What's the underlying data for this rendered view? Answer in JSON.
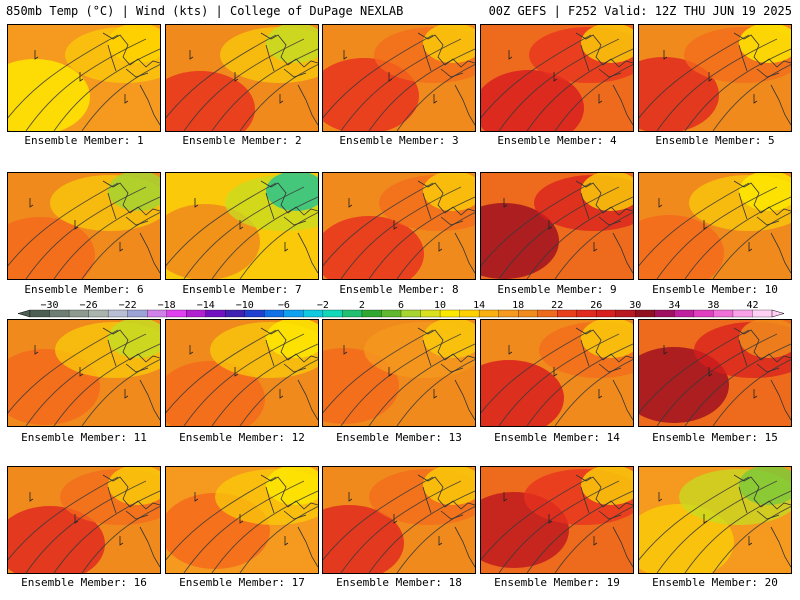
{
  "header": {
    "left": "850mb Temp (°C) | Wind (kts) | College of DuPage NEXLAB",
    "right": "00Z GEFS | F252 Valid: 12Z THU JUN 19 2025"
  },
  "members": [
    {
      "label": "Ensemble Member: 1",
      "base": "#f59a1e",
      "hot": "#fde800",
      "warm": "#f9c90a",
      "hot2": "#ffd400"
    },
    {
      "label": "Ensemble Member: 2",
      "base": "#f08a1c",
      "hot": "#e8321f",
      "warm": "#f9c90a",
      "hot2": "#c7dc22"
    },
    {
      "label": "Ensemble Member: 3",
      "base": "#f08a1c",
      "hot": "#e8321f",
      "warm": "#f46a1c",
      "hot2": "#f9c90a"
    },
    {
      "label": "Ensemble Member: 4",
      "base": "#ee6a1c",
      "hot": "#d81f1f",
      "warm": "#e8321f",
      "hot2": "#f9c90a"
    },
    {
      "label": "Ensemble Member: 5",
      "base": "#f08a1c",
      "hot": "#e02a1f",
      "warm": "#f46a1c",
      "hot2": "#fde800"
    },
    {
      "label": "Ensemble Member: 6",
      "base": "#f08a1c",
      "hot": "#f46a1c",
      "warm": "#f9c90a",
      "hot2": "#a6d430"
    },
    {
      "label": "Ensemble Member: 7",
      "base": "#f9c90a",
      "hot": "#f08a1c",
      "warm": "#c7dc22",
      "hot2": "#2bc48c"
    },
    {
      "label": "Ensemble Member: 8",
      "base": "#f08a1c",
      "hot": "#e8321f",
      "warm": "#f46a1c",
      "hot2": "#f9c90a"
    },
    {
      "label": "Ensemble Member: 9",
      "base": "#ee6a1c",
      "hot": "#a01020",
      "warm": "#d81f1f",
      "hot2": "#f9c90a"
    },
    {
      "label": "Ensemble Member: 10",
      "base": "#f08a1c",
      "hot": "#f46a1c",
      "warm": "#f9c90a",
      "hot2": "#fde800"
    },
    {
      "label": "Ensemble Member: 11",
      "base": "#f08a1c",
      "hot": "#f46a1c",
      "warm": "#f9c90a",
      "hot2": "#c7dc22"
    },
    {
      "label": "Ensemble Member: 12",
      "base": "#f08a1c",
      "hot": "#f46a1c",
      "warm": "#f9c90a",
      "hot2": "#fde800"
    },
    {
      "label": "Ensemble Member: 13",
      "base": "#f08a1c",
      "hot": "#f46a1c",
      "warm": "#f59a1e",
      "hot2": "#f9c90a"
    },
    {
      "label": "Ensemble Member: 14",
      "base": "#f08a1c",
      "hot": "#d81f1f",
      "warm": "#f46a1c",
      "hot2": "#f9c90a"
    },
    {
      "label": "Ensemble Member: 15",
      "base": "#ee6a1c",
      "hot": "#a01020",
      "warm": "#d81f1f",
      "hot2": "#f08a1c"
    },
    {
      "label": "Ensemble Member: 16",
      "base": "#f08a1c",
      "hot": "#e02a1f",
      "warm": "#f46a1c",
      "hot2": "#f9c90a"
    },
    {
      "label": "Ensemble Member: 17",
      "base": "#f59a1e",
      "hot": "#f46a1c",
      "warm": "#f9c90a",
      "hot2": "#fde800"
    },
    {
      "label": "Ensemble Member: 18",
      "base": "#f08a1c",
      "hot": "#e02a1f",
      "warm": "#f46a1c",
      "hot2": "#f9c90a"
    },
    {
      "label": "Ensemble Member: 19",
      "base": "#ee6a1c",
      "hot": "#c01a1f",
      "warm": "#e8321f",
      "hot2": "#f9c90a"
    },
    {
      "label": "Ensemble Member: 20",
      "base": "#f59a1e",
      "hot": "#f9c90a",
      "warm": "#c7dc22",
      "hot2": "#7ec83a"
    }
  ],
  "colorbar": {
    "ticks": [
      "−30",
      "−26",
      "−22",
      "−18",
      "−14",
      "−10",
      "−6",
      "−2",
      "2",
      "6",
      "10",
      "14",
      "18",
      "22",
      "26",
      "30",
      "34",
      "38",
      "42"
    ],
    "colors": [
      "#4d5e52",
      "#6f7e74",
      "#8e9a90",
      "#aab4ad",
      "#b8bfd4",
      "#9aa2d6",
      "#d080e8",
      "#e040f0",
      "#b020d0",
      "#7010c0",
      "#4020b0",
      "#2040d0",
      "#1070e8",
      "#10a0f0",
      "#10c8e0",
      "#10d8b8",
      "#20c070",
      "#30a830",
      "#60b830",
      "#a6d430",
      "#d8e020",
      "#fde800",
      "#ffd000",
      "#f9b010",
      "#f59a1e",
      "#f08a1c",
      "#ee6a1c",
      "#e8401c",
      "#e02a1f",
      "#d81f1f",
      "#b81820",
      "#901020",
      "#a01060",
      "#c020a0",
      "#e040c0",
      "#f070d8",
      "#f8a0e8",
      "#ffd0f4"
    ]
  }
}
